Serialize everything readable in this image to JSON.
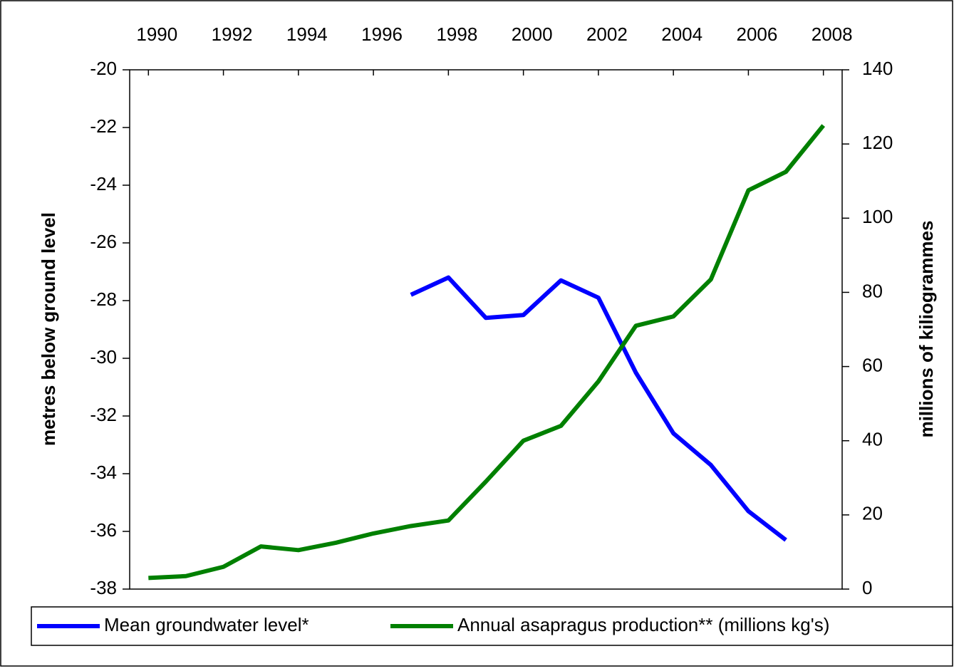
{
  "chart_data": {
    "type": "line",
    "x": [
      1990,
      1991,
      1992,
      1993,
      1994,
      1995,
      1996,
      1997,
      1998,
      1999,
      2000,
      2001,
      2002,
      2003,
      2004,
      2005,
      2006,
      2007,
      2008
    ],
    "series": [
      {
        "name": "Mean groundwater level*",
        "color": "#0000ff",
        "axis": "y",
        "values": [
          null,
          null,
          null,
          null,
          null,
          null,
          null,
          -27.8,
          -27.2,
          -28.6,
          -28.5,
          -27.3,
          -27.9,
          -30.5,
          -32.6,
          -33.7,
          -35.3,
          -36.3,
          null
        ]
      },
      {
        "name": "Annual asapragus production** (millions kg's)",
        "color": "#008000",
        "axis": "y2",
        "values": [
          3,
          3.5,
          6,
          11.5,
          10.5,
          12.5,
          15,
          17,
          18.5,
          29,
          40,
          44,
          56,
          71,
          73.5,
          83.5,
          107.5,
          112.5,
          125
        ]
      }
    ],
    "xlim": [
      1989.5,
      2008.5
    ],
    "xticks": [
      1990,
      1992,
      1994,
      1996,
      1998,
      2000,
      2002,
      2004,
      2006,
      2008
    ],
    "ylim": [
      -38,
      -20
    ],
    "yticks": [
      -38,
      -36,
      -34,
      -32,
      -30,
      -28,
      -26,
      -24,
      -22,
      -20
    ],
    "y2lim": [
      0,
      140
    ],
    "y2ticks": [
      0,
      20,
      40,
      60,
      80,
      100,
      120,
      140
    ],
    "ylabel": "metres below ground level",
    "y2label": "millions of kiliogrammes",
    "legend": "bottom"
  }
}
